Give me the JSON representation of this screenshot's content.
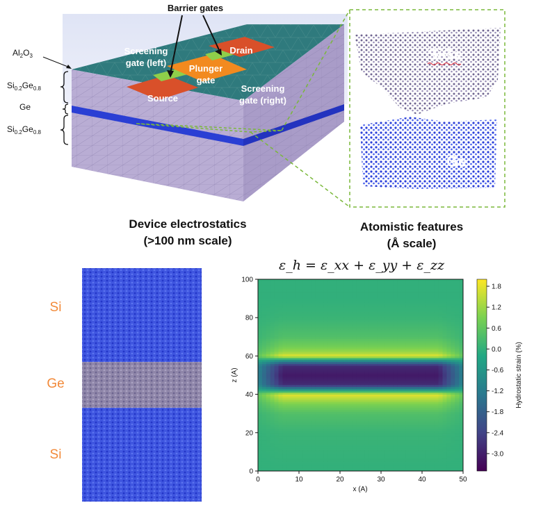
{
  "device": {
    "layers": {
      "al2o3": "Al2O3",
      "si_top_base": "Si",
      "si_top_sub": "0.2",
      "ge_mid": "Ge",
      "ge_sub": "0.8",
      "ge_layer": "Ge",
      "si_bot_base": "Si",
      "si_bot_sub": "0.2",
      "ge_bot_mid": "Ge",
      "ge_bot_sub": "0.8"
    },
    "gates": {
      "barrier": "Barrier gates",
      "drain": "Drain",
      "plunger_1": "Plunger",
      "plunger_2": "gate",
      "source": "Source",
      "screen_left_1": "Screening",
      "screen_left_2": "gate (left)",
      "screen_right_1": "Screening",
      "screen_right_2": "gate (right)"
    },
    "caption_1": "Device electrostatics",
    "caption_2": "(>100 nm scale)"
  },
  "atomistic": {
    "sige_label": "SiGe",
    "ge_label": "Ge",
    "caption_1": "Atomistic features",
    "caption_2": "(Å scale)"
  },
  "slab": {
    "top": "Si",
    "mid": "Ge",
    "bottom": "Si"
  },
  "colors": {
    "oxide_top": "#2f7a7d",
    "lavender": "#b9add4",
    "blue_layer": "#2a3fd4",
    "orange": "#f28a1f",
    "red_orange": "#d9502a",
    "green": "#8fcf4a",
    "dashed_green": "#7ab83a"
  },
  "chart_data": {
    "type": "heatmap",
    "title": "ε_h = ε_xx + ε_yy + ε_zz",
    "xlabel": "x (A)",
    "ylabel": "z (A)",
    "xlim": [
      0,
      50
    ],
    "ylim": [
      0,
      100
    ],
    "xticks": [
      "0",
      "10",
      "20",
      "30",
      "40",
      "50"
    ],
    "yticks": [
      "0",
      "20",
      "40",
      "60",
      "80",
      "100"
    ],
    "colorbar_label": "Hydrostatic strain (%)",
    "colorbar_ticks": [
      "1.8",
      "1.2",
      "0.6",
      "0.0",
      "-0.6",
      "-1.2",
      "-1.8",
      "-2.4",
      "-3.0"
    ],
    "colorbar_range": [
      -3.5,
      2.0
    ],
    "profile_z": [
      0,
      10,
      20,
      30,
      35,
      40,
      42,
      45,
      50,
      55,
      58,
      60,
      62,
      65,
      70,
      80,
      90,
      100
    ],
    "profile_strain": [
      0.0,
      0.05,
      0.1,
      0.4,
      0.9,
      1.8,
      -0.3,
      -2.8,
      -3.1,
      -2.8,
      -0.5,
      1.8,
      1.2,
      0.8,
      0.4,
      0.1,
      0.0,
      0.0
    ]
  }
}
